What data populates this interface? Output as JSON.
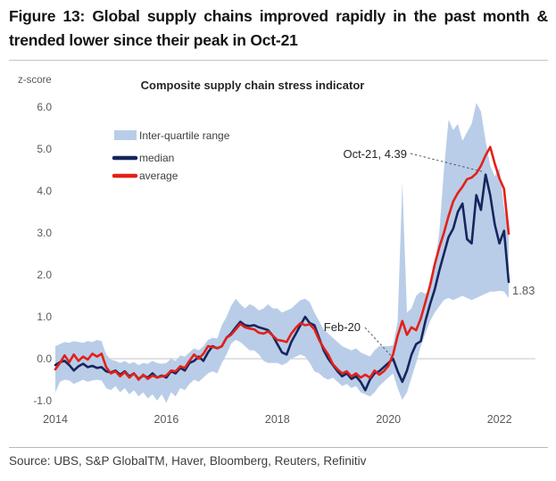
{
  "figure": {
    "title": "Figure 13: Global supply chains improved rapidly in the past month & trended lower since their peak in Oct-21",
    "source": "Source: UBS, S&P GlobalTM, Haver, Bloomberg, Reuters, Refinitiv"
  },
  "chart_data": {
    "type": "line",
    "title": "Composite supply chain stress indicator",
    "ylabel": "z-score",
    "xlabel": "",
    "ylim": [
      -1.3,
      6.4
    ],
    "grid": "zero-line-only",
    "legend_position": "upper-left-inside",
    "yticks": [
      6,
      5,
      4,
      3,
      2,
      1,
      0,
      -1
    ],
    "ytick_labels": [
      "6.0",
      "5.0",
      "4.0",
      "3.0",
      "2.0",
      "1.0",
      "0.0",
      "-1.0"
    ],
    "xtick_years": [
      "2014",
      "2016",
      "2018",
      "2020",
      "2022"
    ],
    "categories": [
      "2014-01",
      "2014-02",
      "2014-03",
      "2014-04",
      "2014-05",
      "2014-06",
      "2014-07",
      "2014-08",
      "2014-09",
      "2014-10",
      "2014-11",
      "2014-12",
      "2015-01",
      "2015-02",
      "2015-03",
      "2015-04",
      "2015-05",
      "2015-06",
      "2015-07",
      "2015-08",
      "2015-09",
      "2015-10",
      "2015-11",
      "2015-12",
      "2016-01",
      "2016-02",
      "2016-03",
      "2016-04",
      "2016-05",
      "2016-06",
      "2016-07",
      "2016-08",
      "2016-09",
      "2016-10",
      "2016-11",
      "2016-12",
      "2017-01",
      "2017-02",
      "2017-03",
      "2017-04",
      "2017-05",
      "2017-06",
      "2017-07",
      "2017-08",
      "2017-09",
      "2017-10",
      "2017-11",
      "2017-12",
      "2018-01",
      "2018-02",
      "2018-03",
      "2018-04",
      "2018-05",
      "2018-06",
      "2018-07",
      "2018-08",
      "2018-09",
      "2018-10",
      "2018-11",
      "2018-12",
      "2019-01",
      "2019-02",
      "2019-03",
      "2019-04",
      "2019-05",
      "2019-06",
      "2019-07",
      "2019-08",
      "2019-09",
      "2019-10",
      "2019-11",
      "2019-12",
      "2020-01",
      "2020-02",
      "2020-03",
      "2020-04",
      "2020-05",
      "2020-06",
      "2020-07",
      "2020-08",
      "2020-09",
      "2020-10",
      "2020-11",
      "2020-12",
      "2021-01",
      "2021-02",
      "2021-03",
      "2021-04",
      "2021-05",
      "2021-06",
      "2021-07",
      "2021-08",
      "2021-09",
      "2021-10",
      "2021-11",
      "2021-12",
      "2022-01",
      "2022-02",
      "2022-03"
    ],
    "band": {
      "name": "Inter-quartile range",
      "color": "#b9cde8",
      "upper": [
        0.3,
        0.35,
        0.4,
        0.38,
        0.42,
        0.4,
        0.38,
        0.42,
        0.4,
        0.45,
        0.42,
        0.1,
        -0.02,
        -0.05,
        -0.1,
        -0.05,
        -0.12,
        -0.08,
        -0.15,
        -0.1,
        -0.12,
        -0.05,
        -0.1,
        -0.12,
        -0.1,
        0.0,
        -0.05,
        0.08,
        0.05,
        0.15,
        0.25,
        0.2,
        0.3,
        0.45,
        0.5,
        0.48,
        0.8,
        1.0,
        1.26,
        1.43,
        1.3,
        1.2,
        1.3,
        1.25,
        1.15,
        1.2,
        1.3,
        1.2,
        1.2,
        1.1,
        1.15,
        1.2,
        1.3,
        1.4,
        1.43,
        1.35,
        1.1,
        0.9,
        0.7,
        0.6,
        0.5,
        0.4,
        0.3,
        0.25,
        0.2,
        0.25,
        0.15,
        0.1,
        0.05,
        0.2,
        0.3,
        0.3,
        0.3,
        0.32,
        0.9,
        4.2,
        1.1,
        1.2,
        1.5,
        1.6,
        1.55,
        1.65,
        2.2,
        3.0,
        4.5,
        5.7,
        5.45,
        5.6,
        5.2,
        5.4,
        5.6,
        6.1,
        5.9,
        5.2,
        4.6,
        4.35,
        4.55,
        3.6,
        3.05
      ],
      "lower": [
        -0.8,
        -0.55,
        -0.5,
        -0.52,
        -0.6,
        -0.55,
        -0.5,
        -0.55,
        -0.52,
        -0.5,
        -0.52,
        -0.7,
        -0.75,
        -0.65,
        -0.8,
        -0.7,
        -0.85,
        -0.75,
        -0.9,
        -0.8,
        -0.95,
        -0.85,
        -1.0,
        -0.85,
        -1.05,
        -0.8,
        -0.9,
        -0.7,
        -0.75,
        -0.6,
        -0.5,
        -0.55,
        -0.45,
        -0.35,
        -0.3,
        -0.35,
        -0.1,
        0.1,
        0.36,
        0.45,
        0.4,
        0.3,
        0.2,
        0.2,
        0.1,
        -0.05,
        -0.1,
        -0.1,
        -0.1,
        -0.15,
        -0.1,
        0.0,
        0.05,
        0.1,
        0.05,
        -0.1,
        -0.3,
        -0.35,
        -0.45,
        -0.5,
        -0.45,
        -0.55,
        -0.65,
        -0.6,
        -0.7,
        -0.65,
        -0.8,
        -0.85,
        -0.9,
        -0.8,
        -0.65,
        -0.55,
        -0.45,
        -0.35,
        -0.7,
        -0.98,
        -0.8,
        -0.45,
        -0.1,
        0.3,
        0.6,
        0.9,
        1.1,
        1.25,
        1.4,
        1.45,
        1.4,
        1.45,
        1.5,
        1.45,
        1.4,
        1.45,
        1.5,
        1.55,
        1.6,
        1.6,
        1.62,
        1.6,
        1.45
      ]
    },
    "series": [
      {
        "name": "median",
        "color": "#16265c",
        "values": [
          -0.15,
          -0.08,
          -0.05,
          -0.15,
          -0.28,
          -0.18,
          -0.12,
          -0.2,
          -0.17,
          -0.22,
          -0.2,
          -0.3,
          -0.33,
          -0.28,
          -0.38,
          -0.3,
          -0.42,
          -0.35,
          -0.48,
          -0.4,
          -0.45,
          -0.35,
          -0.45,
          -0.4,
          -0.45,
          -0.3,
          -0.35,
          -0.22,
          -0.28,
          -0.1,
          -0.05,
          0.05,
          -0.05,
          0.15,
          0.3,
          0.25,
          0.3,
          0.5,
          0.6,
          0.75,
          0.88,
          0.8,
          0.78,
          0.8,
          0.75,
          0.72,
          0.68,
          0.55,
          0.35,
          0.15,
          0.1,
          0.4,
          0.6,
          0.8,
          1.0,
          0.85,
          0.8,
          0.5,
          0.2,
          0.0,
          -0.15,
          -0.3,
          -0.42,
          -0.35,
          -0.48,
          -0.42,
          -0.55,
          -0.75,
          -0.5,
          -0.35,
          -0.3,
          -0.2,
          -0.1,
          0.0,
          -0.3,
          -0.55,
          -0.28,
          0.1,
          0.35,
          0.42,
          0.9,
          1.3,
          1.65,
          2.1,
          2.5,
          2.9,
          3.1,
          3.5,
          3.7,
          2.85,
          2.75,
          3.9,
          3.55,
          4.39,
          3.9,
          3.2,
          2.75,
          3.05,
          1.83
        ]
      },
      {
        "name": "average",
        "color": "#e32119",
        "values": [
          -0.25,
          -0.1,
          0.08,
          -0.08,
          0.1,
          -0.05,
          0.05,
          -0.02,
          0.12,
          0.05,
          0.12,
          -0.2,
          -0.35,
          -0.3,
          -0.42,
          -0.32,
          -0.45,
          -0.35,
          -0.5,
          -0.38,
          -0.48,
          -0.4,
          -0.45,
          -0.42,
          -0.4,
          -0.28,
          -0.3,
          -0.18,
          -0.22,
          -0.05,
          0.1,
          0.0,
          0.12,
          0.3,
          0.28,
          0.25,
          0.3,
          0.5,
          0.57,
          0.7,
          0.83,
          0.75,
          0.72,
          0.7,
          0.62,
          0.6,
          0.65,
          0.55,
          0.45,
          0.43,
          0.4,
          0.6,
          0.74,
          0.85,
          0.8,
          0.82,
          0.7,
          0.45,
          0.26,
          0.1,
          -0.13,
          -0.25,
          -0.35,
          -0.3,
          -0.42,
          -0.35,
          -0.45,
          -0.38,
          -0.45,
          -0.28,
          -0.38,
          -0.3,
          -0.17,
          0.1,
          0.55,
          0.9,
          0.57,
          0.75,
          0.68,
          0.96,
          1.35,
          1.75,
          2.25,
          2.65,
          3.0,
          3.4,
          3.75,
          3.95,
          4.1,
          4.28,
          4.32,
          4.42,
          4.6,
          4.85,
          5.05,
          4.65,
          4.3,
          4.05,
          2.98
        ]
      }
    ],
    "annotations": [
      {
        "label": "Oct-21, 4.39",
        "series": "median",
        "month": "2021-10",
        "value": 4.39
      },
      {
        "label": "Feb-20",
        "series": "median",
        "month": "2020-02",
        "value": 0.0
      }
    ],
    "end_label": {
      "label": "1.83",
      "series": "median"
    }
  }
}
